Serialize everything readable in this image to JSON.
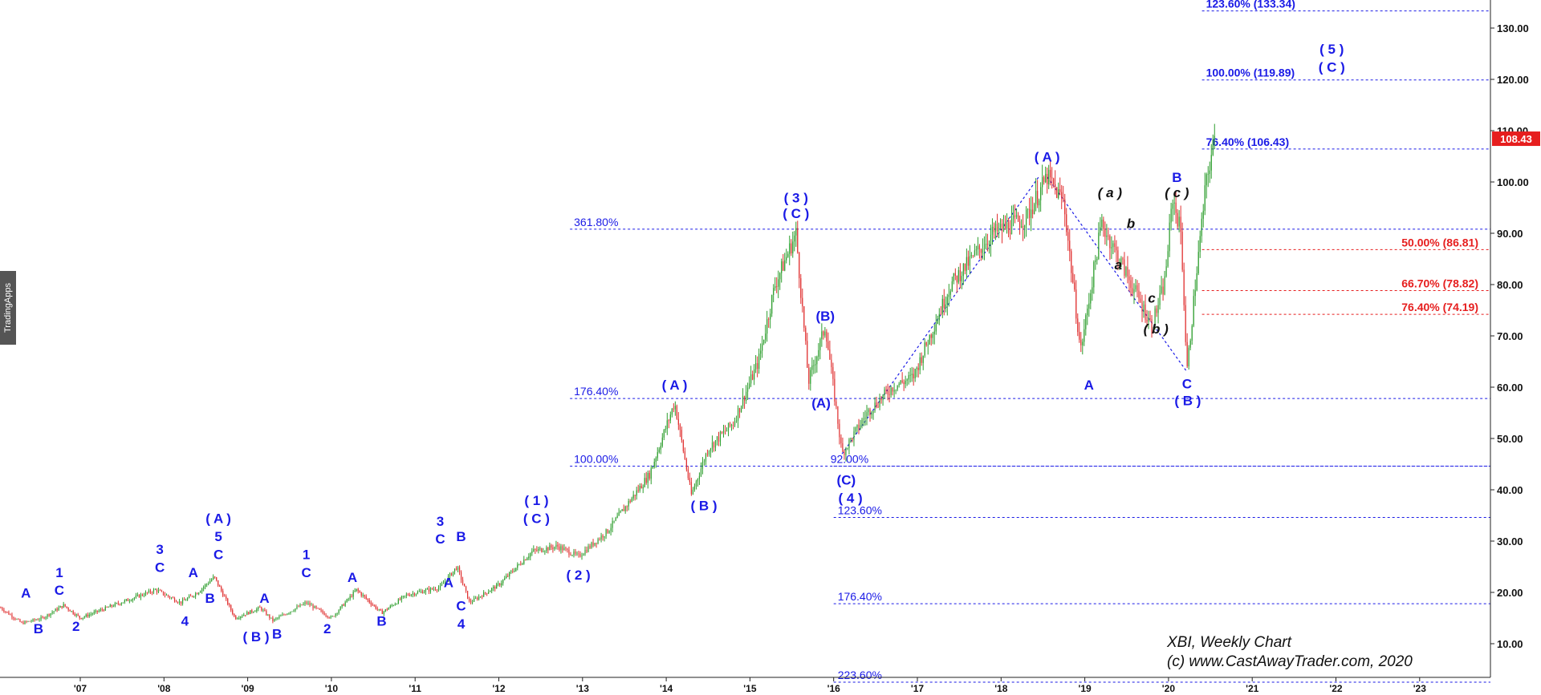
{
  "watermark": "TradingApps",
  "credit": {
    "line1": "XBI,  Weekly Chart",
    "line2": "(c) www.CastAwayTrader.com, 2020"
  },
  "colors": {
    "wave_blue": "#1a1ae6",
    "fib_red": "#e61e1e",
    "price_badge": "#e61e1e",
    "candle_up": "#2e9e2e",
    "candle_down": "#e03030"
  },
  "chart_data": {
    "type": "candlestick",
    "symbol": "XBI",
    "timeframe": "Weekly",
    "x_range": [
      2006.05,
      2024.0
    ],
    "y_range": [
      5,
      135
    ],
    "y_ticks": [
      "130.00",
      "120.00",
      "110.00",
      "100.00",
      "90.00",
      "80.00",
      "70.00",
      "60.00",
      "50.00",
      "40.00",
      "30.00",
      "20.00",
      "10.00"
    ],
    "x_ticks": [
      {
        "label": "'07",
        "t": 2007.0
      },
      {
        "label": "'08",
        "t": 2008.0
      },
      {
        "label": "'09",
        "t": 2009.0
      },
      {
        "label": "'10",
        "t": 2010.0
      },
      {
        "label": "'11",
        "t": 2011.0
      },
      {
        "label": "'12",
        "t": 2012.0
      },
      {
        "label": "'13",
        "t": 2013.0
      },
      {
        "label": "'14",
        "t": 2014.0
      },
      {
        "label": "'15",
        "t": 2015.0
      },
      {
        "label": "'16",
        "t": 2016.0
      },
      {
        "label": "'17",
        "t": 2017.0
      },
      {
        "label": "'18",
        "t": 2018.0
      },
      {
        "label": "'19",
        "t": 2019.0
      },
      {
        "label": "'20",
        "t": 2020.0
      },
      {
        "label": "'21",
        "t": 2021.0
      },
      {
        "label": "'22",
        "t": 2022.0
      },
      {
        "label": "'23",
        "t": 2023.0
      }
    ],
    "last_price": "108.43",
    "last_price_value": 108.43,
    "price_path": [
      [
        2006.05,
        17
      ],
      [
        2006.3,
        14
      ],
      [
        2006.55,
        15
      ],
      [
        2006.8,
        17.5
      ],
      [
        2007.0,
        15
      ],
      [
        2007.4,
        17.5
      ],
      [
        2007.9,
        20.5
      ],
      [
        2008.2,
        18
      ],
      [
        2008.4,
        20
      ],
      [
        2008.6,
        23
      ],
      [
        2008.85,
        15
      ],
      [
        2009.15,
        17
      ],
      [
        2009.3,
        14.5
      ],
      [
        2009.7,
        18
      ],
      [
        2010.0,
        15
      ],
      [
        2010.3,
        20.5
      ],
      [
        2010.6,
        16
      ],
      [
        2010.9,
        19.5
      ],
      [
        2011.3,
        21
      ],
      [
        2011.5,
        25
      ],
      [
        2011.65,
        18
      ],
      [
        2012.0,
        21.5
      ],
      [
        2012.4,
        28
      ],
      [
        2012.7,
        29
      ],
      [
        2012.95,
        27
      ],
      [
        2013.3,
        32
      ],
      [
        2013.8,
        43
      ],
      [
        2014.1,
        57
      ],
      [
        2014.3,
        39
      ],
      [
        2014.5,
        48
      ],
      [
        2014.8,
        53
      ],
      [
        2015.1,
        65
      ],
      [
        2015.3,
        80
      ],
      [
        2015.55,
        90
      ],
      [
        2015.7,
        61
      ],
      [
        2015.9,
        72
      ],
      [
        2016.1,
        47
      ],
      [
        2016.4,
        55
      ],
      [
        2016.7,
        60
      ],
      [
        2016.95,
        62
      ],
      [
        2017.4,
        80
      ],
      [
        2017.9,
        90
      ],
      [
        2018.3,
        93
      ],
      [
        2018.55,
        101
      ],
      [
        2018.75,
        96
      ],
      [
        2018.95,
        67
      ],
      [
        2019.2,
        92
      ],
      [
        2019.5,
        82
      ],
      [
        2019.8,
        72
      ],
      [
        2019.95,
        80
      ],
      [
        2020.05,
        97
      ],
      [
        2020.15,
        90
      ],
      [
        2020.22,
        63
      ],
      [
        2020.32,
        80
      ],
      [
        2020.45,
        100
      ],
      [
        2020.55,
        108.43
      ]
    ],
    "fib_levels": [
      {
        "label": "361.80%",
        "value": 90.8,
        "color": "blue",
        "x_from": 2012.85
      },
      {
        "label": "176.40%",
        "value": 57.8,
        "color": "blue",
        "x_from": 2012.85
      },
      {
        "label": "100.00%",
        "value": 44.6,
        "color": "blue",
        "x_from": 2012.85
      },
      {
        "label": "92.00%",
        "value": 44.6,
        "color": "blue",
        "x_from": 2016.0
      },
      {
        "label": "123.60%",
        "value": 34.6,
        "color": "blue",
        "x_from": 2016.0
      },
      {
        "label": "176.40%",
        "value": 17.8,
        "color": "blue",
        "x_from": 2016.0
      },
      {
        "label": "223.60%",
        "value": 2.5,
        "color": "blue",
        "x_from": 2016.0
      },
      {
        "label": "123.60% (133.34)",
        "value": 133.34,
        "color": "blue",
        "x_from": 2020.4
      },
      {
        "label": "100.00% (119.89)",
        "value": 119.89,
        "color": "blue",
        "x_from": 2020.4
      },
      {
        "label": "76.40% (106.43)",
        "value": 106.43,
        "color": "blue",
        "x_from": 2020.4
      },
      {
        "label": "50.00% (86.81)",
        "value": 86.81,
        "color": "red",
        "x_from": 2020.4
      },
      {
        "label": "66.70% (78.82)",
        "value": 78.82,
        "color": "red",
        "x_from": 2020.4
      },
      {
        "label": "76.40% (74.19)",
        "value": 74.19,
        "color": "red",
        "x_from": 2020.4
      }
    ],
    "trend_lines": [
      {
        "from": [
          2016.1,
          47
        ],
        "to": [
          2018.45,
          101
        ]
      },
      {
        "from": [
          2018.55,
          101
        ],
        "to": [
          2020.22,
          63
        ]
      }
    ],
    "wave_labels": [
      {
        "text": "A",
        "t": 2006.35,
        "v": 19
      },
      {
        "text": "B",
        "t": 2006.5,
        "v": 12
      },
      {
        "text": "1",
        "t": 2006.75,
        "v": 23
      },
      {
        "text": "C",
        "t": 2006.75,
        "v": 19.5
      },
      {
        "text": "2",
        "t": 2006.95,
        "v": 12.5
      },
      {
        "text": "3",
        "t": 2007.95,
        "v": 27.5
      },
      {
        "text": "C",
        "t": 2007.95,
        "v": 24
      },
      {
        "text": "A",
        "t": 2008.35,
        "v": 23
      },
      {
        "text": "4",
        "t": 2008.25,
        "v": 13.5
      },
      {
        "text": "B",
        "t": 2008.55,
        "v": 18
      },
      {
        "text": "( A )",
        "t": 2008.65,
        "v": 33.5
      },
      {
        "text": "5",
        "t": 2008.65,
        "v": 30
      },
      {
        "text": "C",
        "t": 2008.65,
        "v": 26.5
      },
      {
        "text": "A",
        "t": 2009.2,
        "v": 18
      },
      {
        "text": "( B )",
        "t": 2009.1,
        "v": 10.5
      },
      {
        "text": "B",
        "t": 2009.35,
        "v": 11
      },
      {
        "text": "1",
        "t": 2009.7,
        "v": 26.5
      },
      {
        "text": "C",
        "t": 2009.7,
        "v": 23
      },
      {
        "text": "2",
        "t": 2009.95,
        "v": 12
      },
      {
        "text": "A",
        "t": 2010.25,
        "v": 22
      },
      {
        "text": "B",
        "t": 2010.6,
        "v": 13.5
      },
      {
        "text": "3",
        "t": 2011.3,
        "v": 33
      },
      {
        "text": "C",
        "t": 2011.3,
        "v": 29.5
      },
      {
        "text": "B",
        "t": 2011.55,
        "v": 30
      },
      {
        "text": "A",
        "t": 2011.4,
        "v": 21
      },
      {
        "text": "C",
        "t": 2011.55,
        "v": 16.5
      },
      {
        "text": "4",
        "t": 2011.55,
        "v": 13
      },
      {
        "text": "( 1 )",
        "t": 2012.45,
        "v": 37
      },
      {
        "text": "( C )",
        "t": 2012.45,
        "v": 33.5
      },
      {
        "text": "( 2 )",
        "t": 2012.95,
        "v": 22.5
      },
      {
        "text": "( A )",
        "t": 2014.1,
        "v": 59.5
      },
      {
        "text": "( B )",
        "t": 2014.45,
        "v": 36
      },
      {
        "text": "( 3 )",
        "t": 2015.55,
        "v": 96
      },
      {
        "text": "( C )",
        "t": 2015.55,
        "v": 93
      },
      {
        "text": "(B)",
        "t": 2015.9,
        "v": 73
      },
      {
        "text": "(A)",
        "t": 2015.85,
        "v": 56
      },
      {
        "text": "(C)",
        "t": 2016.15,
        "v": 41
      },
      {
        "text": "( 4 )",
        "t": 2016.2,
        "v": 37.5
      },
      {
        "text": "( A )",
        "t": 2018.55,
        "v": 104
      },
      {
        "text": "A",
        "t": 2019.05,
        "v": 59.5
      },
      {
        "text": "B",
        "t": 2020.1,
        "v": 100
      },
      {
        "text": "C",
        "t": 2020.22,
        "v": 59.8
      },
      {
        "text": "( B )",
        "t": 2020.23,
        "v": 56.5
      },
      {
        "text": "( 5 )",
        "t": 2021.95,
        "v": 125
      },
      {
        "text": "( C )",
        "t": 2021.95,
        "v": 121.5
      }
    ],
    "sub_wave_labels": [
      {
        "text": "( a )",
        "t": 2019.3,
        "v": 97
      },
      {
        "text": "b",
        "t": 2019.55,
        "v": 91
      },
      {
        "text": "a",
        "t": 2019.4,
        "v": 83
      },
      {
        "text": "c",
        "t": 2019.8,
        "v": 76.5
      },
      {
        "text": "( b )",
        "t": 2019.85,
        "v": 70.5
      },
      {
        "text": "( c )",
        "t": 2020.1,
        "v": 97
      }
    ]
  }
}
